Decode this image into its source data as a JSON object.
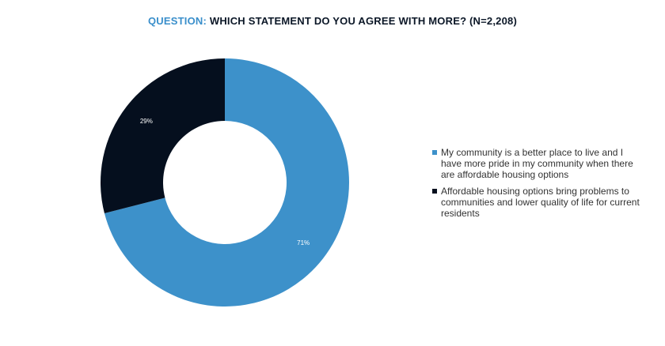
{
  "header": {
    "prefix": "QUESTION:",
    "text": "WHICH STATEMENT DO YOU AGREE WITH MORE? (N=2,208)"
  },
  "chart_data": {
    "type": "pie",
    "donut": true,
    "slices": [
      {
        "label": "My community is a better place to live and I have more pride in my community when there are affordable housing options",
        "value": 71,
        "display": "71%",
        "color": "#3d91ca"
      },
      {
        "label": "Affordable housing options bring problems to communities and lower quality of life for current residents",
        "value": 29,
        "display": "29%",
        "color": "#050f1e"
      }
    ],
    "legend_position": "right"
  }
}
